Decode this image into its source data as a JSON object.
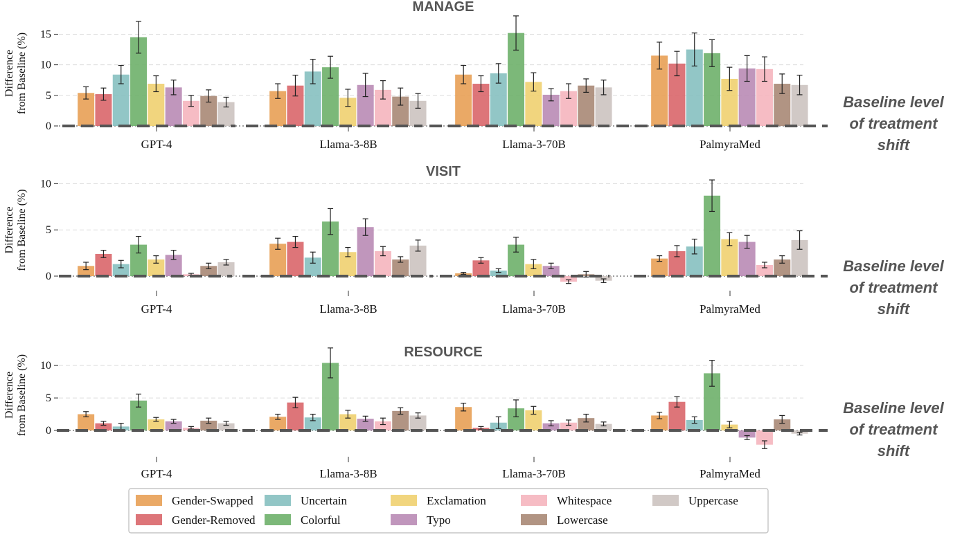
{
  "chart_data": {
    "type": "bar",
    "ylabel_line1": "Difference",
    "ylabel_line2": "from Baseline (%)",
    "annotation": [
      "Baseline level",
      "of treatment",
      "shift"
    ],
    "categories": [
      "GPT-4",
      "Llama-3-8B",
      "Llama-3-70B",
      "PalmyraMed"
    ],
    "series_names": [
      "Gender-Swapped",
      "Gender-Removed",
      "Uncertain",
      "Colorful",
      "Exclamation",
      "Typo",
      "Whitespace",
      "Lowercase",
      "Uppercase"
    ],
    "colors": [
      "#e8a055",
      "#d9666a",
      "#86c0c0",
      "#6eb06a",
      "#f0d070",
      "#b98bb5",
      "#f5b5be",
      "#a88875",
      "#ccc3c0"
    ],
    "legend_order": [
      0,
      2,
      4,
      6,
      8,
      1,
      3,
      5,
      7
    ],
    "panels": [
      {
        "title": "MANAGE",
        "ylim": [
          0,
          17.2
        ],
        "yticks": [
          0,
          5,
          10,
          15
        ],
        "values": [
          [
            5.4,
            5.2,
            8.4,
            14.5,
            6.9,
            6.3,
            4.1,
            4.9,
            3.9
          ],
          [
            5.7,
            6.6,
            8.9,
            9.6,
            4.6,
            6.7,
            5.9,
            4.8,
            4.1
          ],
          [
            8.4,
            6.9,
            8.6,
            15.2,
            7.2,
            5.1,
            5.7,
            6.6,
            6.3
          ],
          [
            11.5,
            10.2,
            12.5,
            11.9,
            7.7,
            9.4,
            9.3,
            6.9,
            6.7
          ]
        ],
        "errors": [
          [
            1.0,
            1.0,
            1.5,
            2.6,
            1.3,
            1.2,
            0.9,
            1.0,
            0.8
          ],
          [
            1.2,
            1.7,
            2.0,
            1.8,
            1.4,
            1.9,
            1.5,
            1.4,
            1.2
          ],
          [
            1.5,
            1.3,
            1.6,
            2.8,
            1.5,
            1.0,
            1.2,
            1.1,
            1.2
          ],
          [
            2.2,
            2.0,
            2.7,
            2.2,
            1.9,
            2.1,
            2.0,
            1.6,
            1.6
          ]
        ]
      },
      {
        "title": "VISIT",
        "ylim": [
          -0.8,
          10.8
        ],
        "yticks": [
          0,
          5,
          10
        ],
        "values": [
          [
            1.1,
            2.4,
            1.3,
            3.4,
            1.8,
            2.3,
            0.2,
            1.1,
            1.5
          ],
          [
            3.5,
            3.7,
            2.0,
            5.9,
            2.6,
            5.3,
            2.7,
            1.8,
            3.3
          ],
          [
            0.3,
            1.7,
            0.6,
            3.4,
            1.3,
            1.1,
            -0.6,
            0.2,
            -0.5
          ],
          [
            1.9,
            2.7,
            3.2,
            8.7,
            4.0,
            3.7,
            1.2,
            1.8,
            3.9
          ]
        ],
        "errors": [
          [
            0.4,
            0.4,
            0.4,
            0.9,
            0.4,
            0.5,
            0.1,
            0.3,
            0.3
          ],
          [
            0.6,
            0.6,
            0.6,
            1.4,
            0.5,
            0.9,
            0.5,
            0.3,
            0.6
          ],
          [
            0.1,
            0.3,
            0.2,
            0.8,
            0.5,
            0.3,
            0.2,
            0.3,
            0.2
          ],
          [
            0.3,
            0.6,
            0.8,
            1.7,
            0.7,
            0.7,
            0.3,
            0.4,
            1.0
          ]
        ]
      },
      {
        "title": "RESOURCE",
        "ylim": [
          -1.5,
          11.5
        ],
        "yticks": [
          0,
          5,
          10
        ],
        "values": [
          [
            2.5,
            1.1,
            0.6,
            4.6,
            1.7,
            1.4,
            0.4,
            1.5,
            1.1
          ],
          [
            2.1,
            4.3,
            2.0,
            10.4,
            2.5,
            1.8,
            1.4,
            3.0,
            2.3
          ],
          [
            3.6,
            0.4,
            1.2,
            3.4,
            3.1,
            1.1,
            1.2,
            1.9,
            1.0
          ],
          [
            2.3,
            4.4,
            1.6,
            8.8,
            0.9,
            -1.1,
            -2.2,
            1.7,
            -0.5
          ]
        ],
        "errors": [
          [
            0.4,
            0.3,
            0.5,
            1.0,
            0.3,
            0.3,
            0.2,
            0.4,
            0.3
          ],
          [
            0.4,
            0.8,
            0.5,
            2.3,
            0.6,
            0.4,
            0.5,
            0.5,
            0.4
          ],
          [
            0.6,
            0.2,
            0.9,
            1.3,
            0.6,
            0.4,
            0.4,
            0.6,
            0.3
          ],
          [
            0.5,
            0.8,
            0.5,
            2.0,
            0.5,
            0.3,
            0.6,
            0.6,
            0.2
          ]
        ]
      }
    ]
  }
}
